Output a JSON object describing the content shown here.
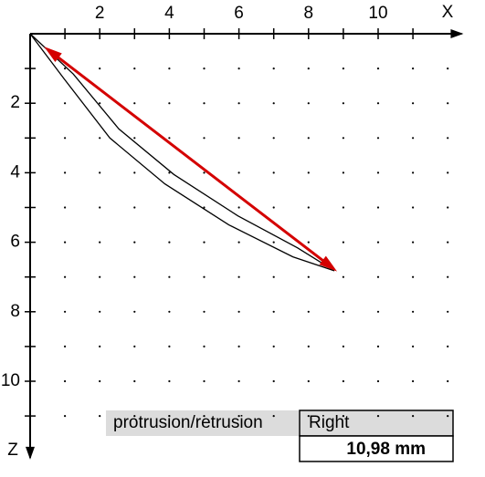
{
  "chart_data": {
    "type": "line",
    "xlabel": "X",
    "ylabel": "Z",
    "xlim": [
      0,
      12.4
    ],
    "ylim": [
      0,
      12.2
    ],
    "xticks": [
      2,
      4,
      6,
      8,
      10
    ],
    "yticks": [
      2,
      4,
      6,
      8,
      10
    ],
    "grid": true,
    "y_inverted": true,
    "series": [
      {
        "color": "#000000",
        "x": [
          0,
          0.97,
          2.29,
          3.87,
          5.71,
          7.55,
          8.74
        ],
        "values": [
          0,
          1.29,
          3.0,
          4.32,
          5.5,
          6.42,
          6.82
        ]
      },
      {
        "color": "#000000",
        "x": [
          0,
          1.24,
          2.55,
          4.13,
          5.97,
          7.68,
          8.74
        ],
        "values": [
          0,
          1.16,
          2.74,
          4.05,
          5.24,
          6.16,
          6.82
        ]
      }
    ],
    "arrow": {
      "color": "#d40000",
      "x": [
        0.4,
        8.82
      ],
      "values": [
        0.37,
        6.84
      ]
    },
    "annotations": [
      "protrusion/retrusion",
      "Right",
      "10,98 mm"
    ]
  }
}
